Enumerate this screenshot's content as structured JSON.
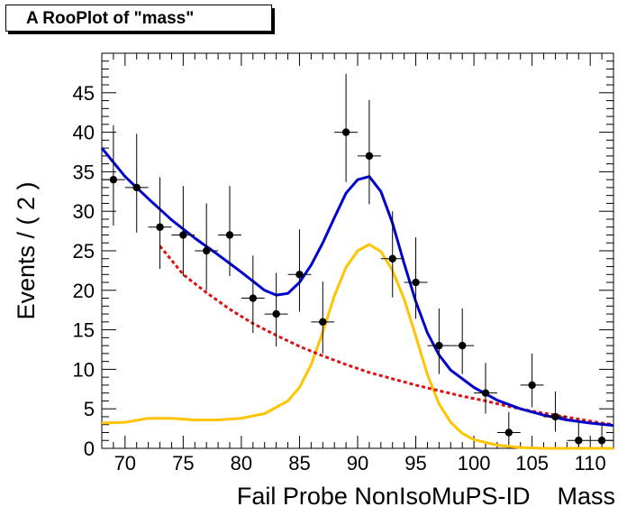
{
  "title": "A RooPlot of \"mass\"",
  "chart_data": {
    "type": "scatter",
    "xlabel": "Fail Probe NonIsoMuPS-ID    Mass",
    "ylabel": "Events / ( 2 )",
    "xlim": [
      68,
      112
    ],
    "ylim": [
      0,
      50
    ],
    "x_ticks": [
      70,
      75,
      80,
      85,
      90,
      95,
      100,
      105,
      110
    ],
    "y_ticks": [
      0,
      5,
      10,
      15,
      20,
      25,
      30,
      35,
      40,
      45
    ],
    "grid": false,
    "colors": {
      "total": "#0000cc",
      "background": "#dd1111",
      "signal": "#ffc400",
      "points": "#000000"
    },
    "points": {
      "x": [
        69,
        71,
        73,
        75,
        77,
        79,
        81,
        83,
        85,
        87,
        89,
        91,
        93,
        95,
        97,
        99,
        101,
        103,
        105,
        107,
        109,
        111
      ],
      "y": [
        34,
        33,
        28,
        27,
        25,
        27,
        19,
        17,
        22,
        16,
        40,
        37,
        24,
        21,
        13,
        13,
        7,
        2,
        8,
        4,
        1,
        1
      ],
      "yerr_low": [
        5.8,
        5.7,
        5.3,
        5.2,
        5.0,
        5.2,
        4.4,
        4.1,
        4.7,
        4.0,
        6.3,
        6.1,
        4.9,
        4.6,
        3.6,
        3.6,
        2.6,
        1.3,
        2.8,
        1.9,
        0.8,
        0.8
      ],
      "yerr_high": [
        6.9,
        6.8,
        6.3,
        6.2,
        6.0,
        6.2,
        5.4,
        5.2,
        5.7,
        5.1,
        7.4,
        7.1,
        6.0,
        5.7,
        4.7,
        4.7,
        3.8,
        2.6,
        4.0,
        3.2,
        2.3,
        2.3
      ]
    },
    "series": [
      {
        "x": [
          68,
          70,
          72,
          74,
          76,
          78,
          80,
          82,
          83,
          84,
          85,
          86,
          87,
          88,
          89,
          90,
          91,
          92,
          93,
          94,
          95,
          96,
          97,
          98,
          100,
          102,
          104,
          106,
          108,
          110,
          112
        ],
        "y": [
          38,
          34.4,
          31.6,
          28.9,
          26.6,
          24.5,
          22.3,
          20,
          19.4,
          19.6,
          21.0,
          23.2,
          26.0,
          29.2,
          32.3,
          34.0,
          34.4,
          32.5,
          28.5,
          23.4,
          18.6,
          14.6,
          11.8,
          9.9,
          7.7,
          6.1,
          5.0,
          4.2,
          3.6,
          3.2,
          2.9
        ]
      },
      {
        "x": [
          73,
          75,
          77,
          79,
          81,
          83,
          85,
          87,
          89,
          91,
          93,
          95,
          97,
          99,
          101,
          103,
          105,
          107,
          109,
          111,
          112
        ],
        "y": [
          25.6,
          22.0,
          19.7,
          17.6,
          15.8,
          14.3,
          12.9,
          11.7,
          10.6,
          9.6,
          8.8,
          8.0,
          7.3,
          6.6,
          6.0,
          5.3,
          4.7,
          4.2,
          3.7,
          3.2,
          3.0
        ]
      },
      {
        "x": [
          68,
          70,
          72,
          74,
          76,
          78,
          80,
          82,
          84,
          85,
          86,
          87,
          88,
          89,
          90,
          91,
          92,
          93,
          94,
          95,
          96,
          97,
          98,
          99,
          100,
          102,
          104,
          106,
          108,
          110,
          112
        ],
        "y": [
          3.2,
          3.3,
          3.8,
          3.8,
          3.6,
          3.6,
          3.8,
          4.4,
          6.0,
          7.7,
          10.6,
          14.7,
          19.3,
          22.9,
          25.0,
          25.8,
          24.9,
          22.5,
          18.9,
          14.2,
          9.3,
          5.6,
          3.3,
          1.9,
          1.1,
          0.4,
          0.1,
          0.0,
          0.0,
          0.0,
          0.0
        ]
      }
    ]
  }
}
